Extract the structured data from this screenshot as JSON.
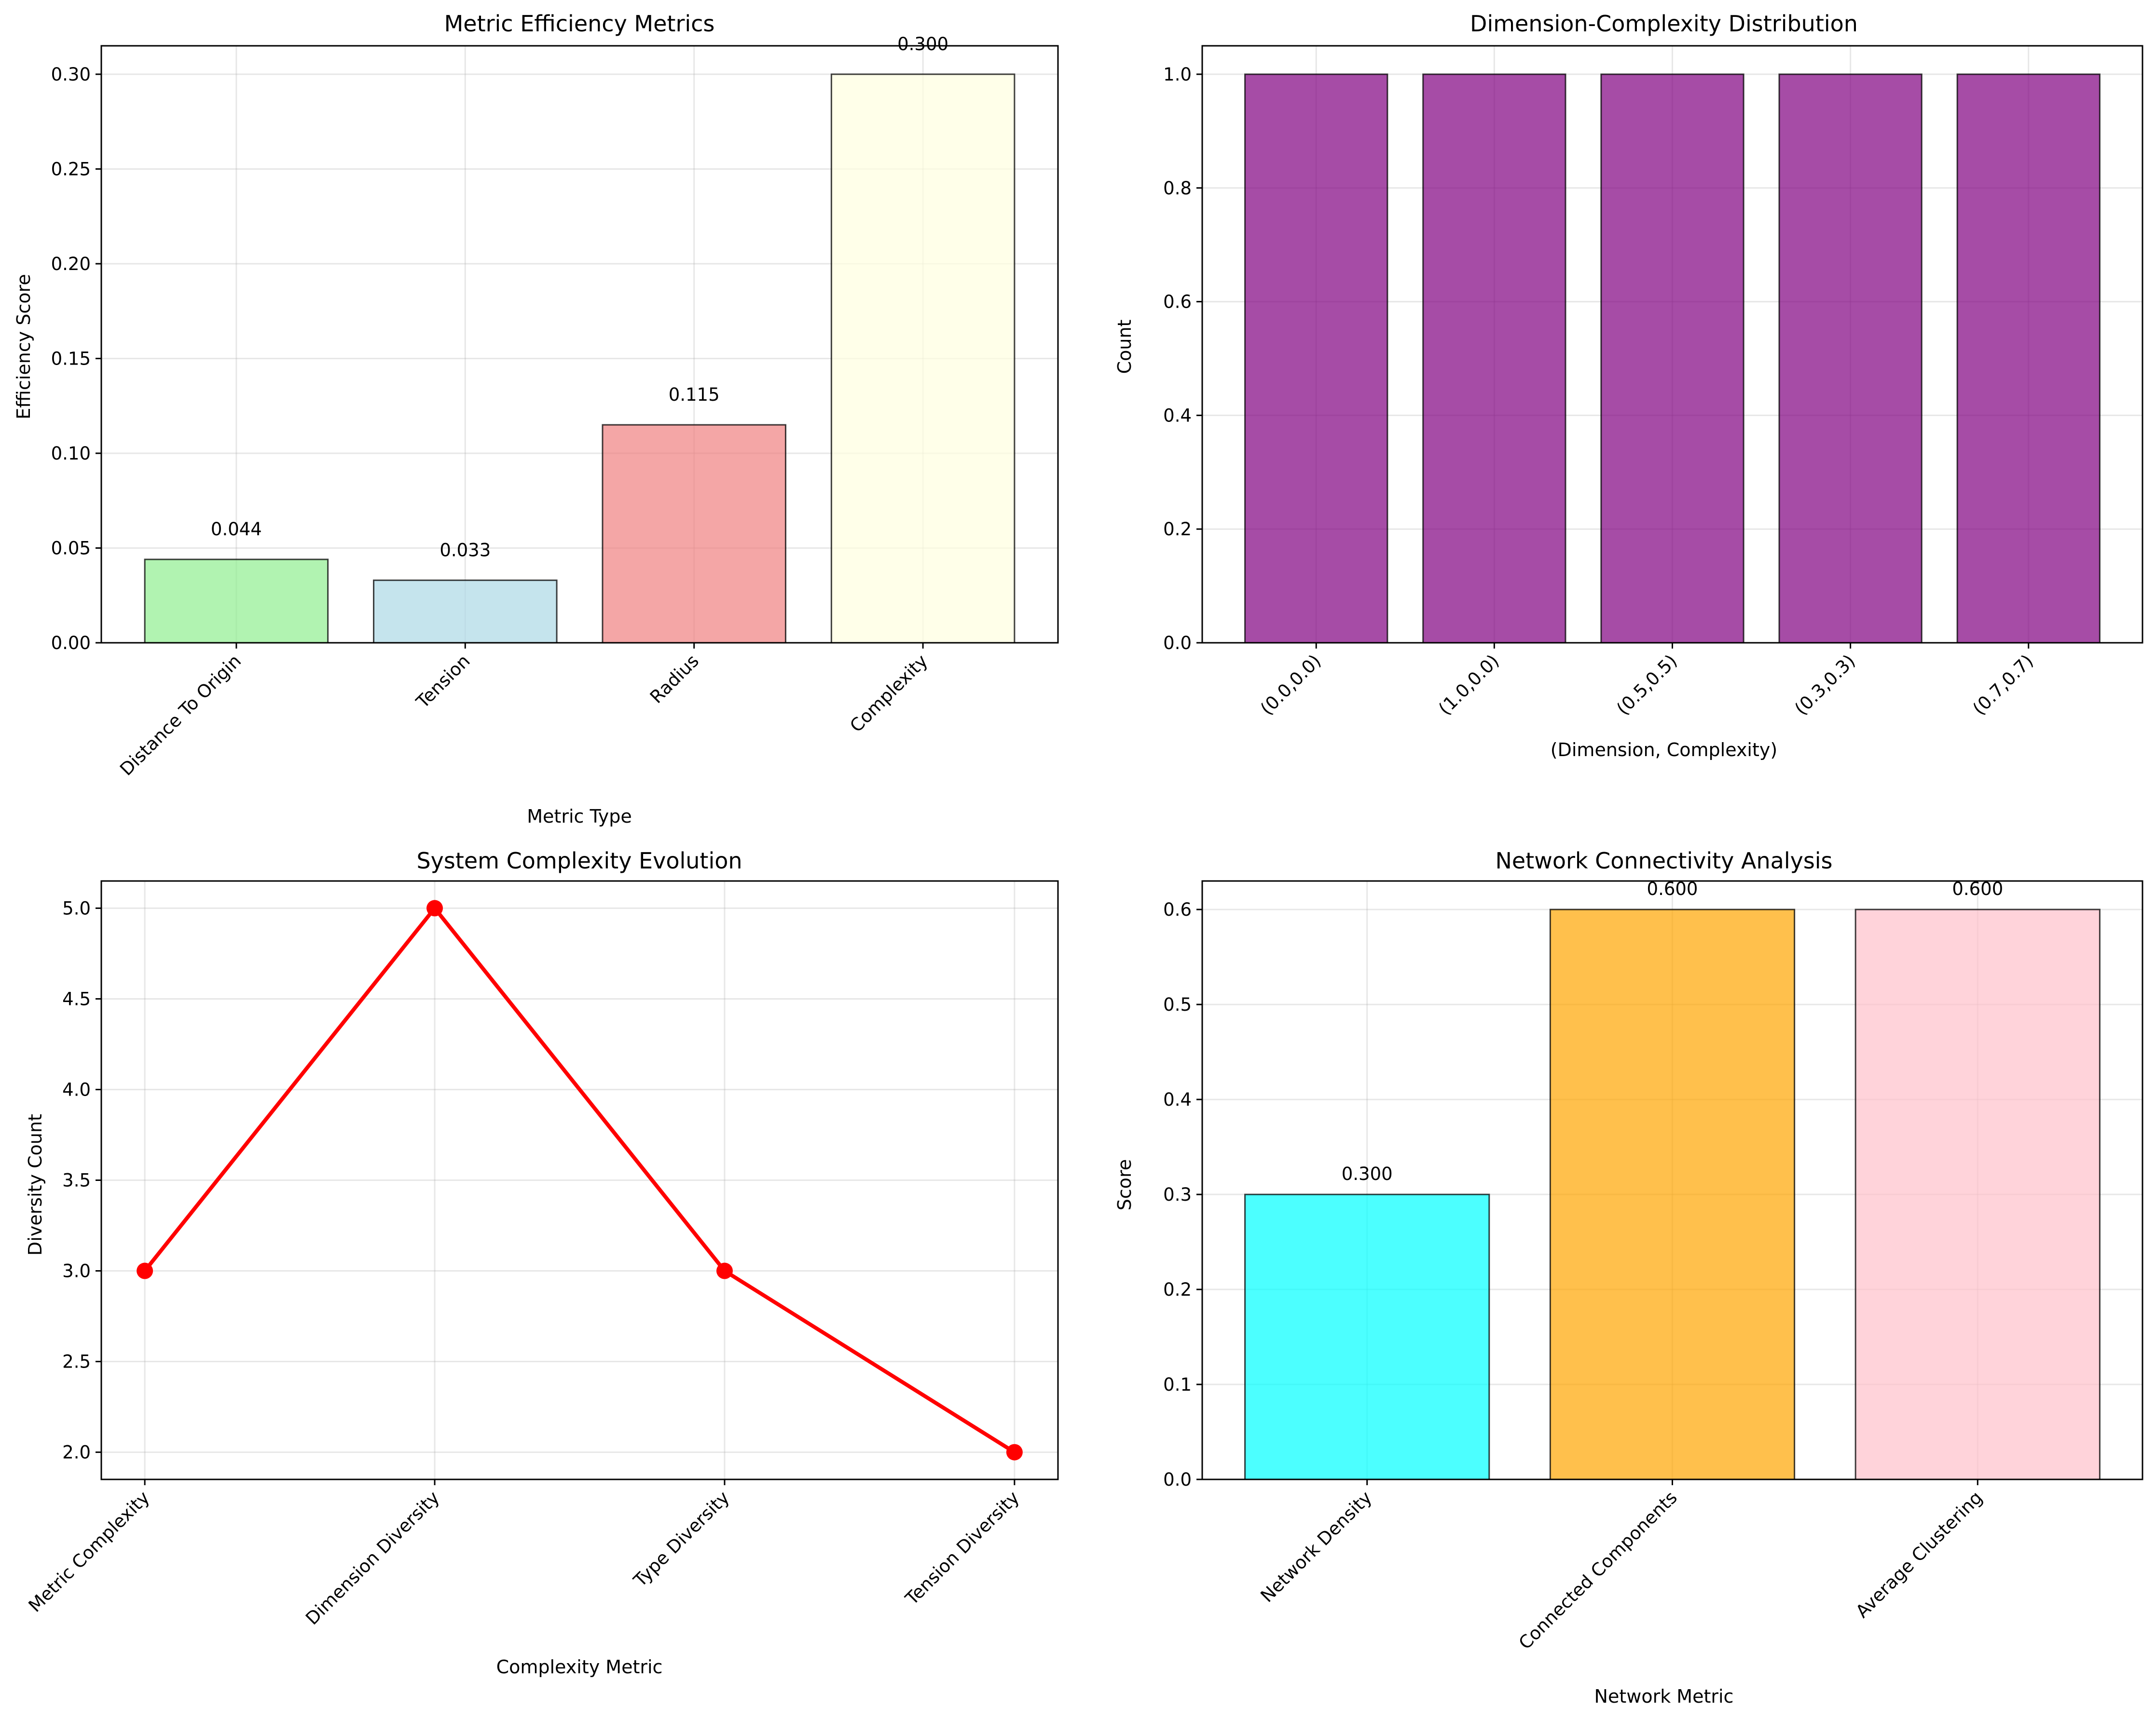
{
  "colors": {
    "light_green": "#90ee90",
    "light_blue": "#add8e6",
    "light_coral": "#f08080",
    "light_yellow": "#ffffe0",
    "purple": "#800080",
    "red": "#ff0000",
    "cyan": "#00ffff",
    "orange": "#ffa500",
    "pink": "#ffc0cb",
    "edge": "#000000"
  },
  "chart_data": [
    {
      "id": "efficiency",
      "type": "bar",
      "title": "Metric Efficiency Metrics",
      "xlabel": "Metric Type",
      "ylabel": "Efficiency Score",
      "categories": [
        "Distance To Origin",
        "Tension",
        "Radius",
        "Complexity"
      ],
      "values": [
        0.044,
        0.033,
        0.115,
        0.3
      ],
      "value_labels": [
        "0.044",
        "0.033",
        "0.115",
        "0.300"
      ],
      "colors": [
        "light_green",
        "light_blue",
        "light_coral",
        "light_yellow"
      ],
      "alpha": 0.7,
      "ylim": [
        0,
        0.315
      ],
      "yticks": [
        0.0,
        0.05,
        0.1,
        0.15,
        0.2,
        0.25,
        0.3
      ],
      "ytick_labels": [
        "0.00",
        "0.05",
        "0.10",
        "0.15",
        "0.20",
        "0.25",
        "0.30"
      ],
      "grid": true
    },
    {
      "id": "distribution",
      "type": "bar",
      "title": "Dimension-Complexity Distribution",
      "xlabel": "(Dimension, Complexity)",
      "ylabel": "Count",
      "categories": [
        "(0.0,0.0)",
        "(1.0,0.0)",
        "(0.5,0.5)",
        "(0.3,0.3)",
        "(0.7,0.7)"
      ],
      "values": [
        1,
        1,
        1,
        1,
        1
      ],
      "colors": [
        "purple",
        "purple",
        "purple",
        "purple",
        "purple"
      ],
      "alpha": 0.7,
      "ylim": [
        0,
        1.05
      ],
      "yticks": [
        0.0,
        0.2,
        0.4,
        0.6,
        0.8,
        1.0
      ],
      "ytick_labels": [
        "0.0",
        "0.2",
        "0.4",
        "0.6",
        "0.8",
        "1.0"
      ],
      "grid": true
    },
    {
      "id": "evolution",
      "type": "line",
      "title": "System Complexity Evolution",
      "xlabel": "Complexity Metric",
      "ylabel": "Diversity Count",
      "categories": [
        "Metric Complexity",
        "Dimension Diversity",
        "Type Diversity",
        "Tension Diversity"
      ],
      "values": [
        3,
        5,
        3,
        2
      ],
      "color": "red",
      "ylim": [
        1.85,
        5.15
      ],
      "yticks": [
        2.0,
        2.5,
        3.0,
        3.5,
        4.0,
        4.5,
        5.0
      ],
      "ytick_labels": [
        "2.0",
        "2.5",
        "3.0",
        "3.5",
        "4.0",
        "4.5",
        "5.0"
      ],
      "grid": true
    },
    {
      "id": "network",
      "type": "bar",
      "title": "Network Connectivity Analysis",
      "xlabel": "Network Metric",
      "ylabel": "Score",
      "categories": [
        "Network Density",
        "Connected Components",
        "Average Clustering"
      ],
      "values": [
        0.3,
        0.6,
        0.6
      ],
      "value_labels": [
        "0.300",
        "0.600",
        "0.600"
      ],
      "colors": [
        "cyan",
        "orange",
        "pink"
      ],
      "alpha": 0.7,
      "ylim": [
        0,
        0.63
      ],
      "yticks": [
        0.0,
        0.1,
        0.2,
        0.3,
        0.4,
        0.5,
        0.6
      ],
      "ytick_labels": [
        "0.0",
        "0.1",
        "0.2",
        "0.3",
        "0.4",
        "0.5",
        "0.6"
      ],
      "grid": true
    }
  ]
}
